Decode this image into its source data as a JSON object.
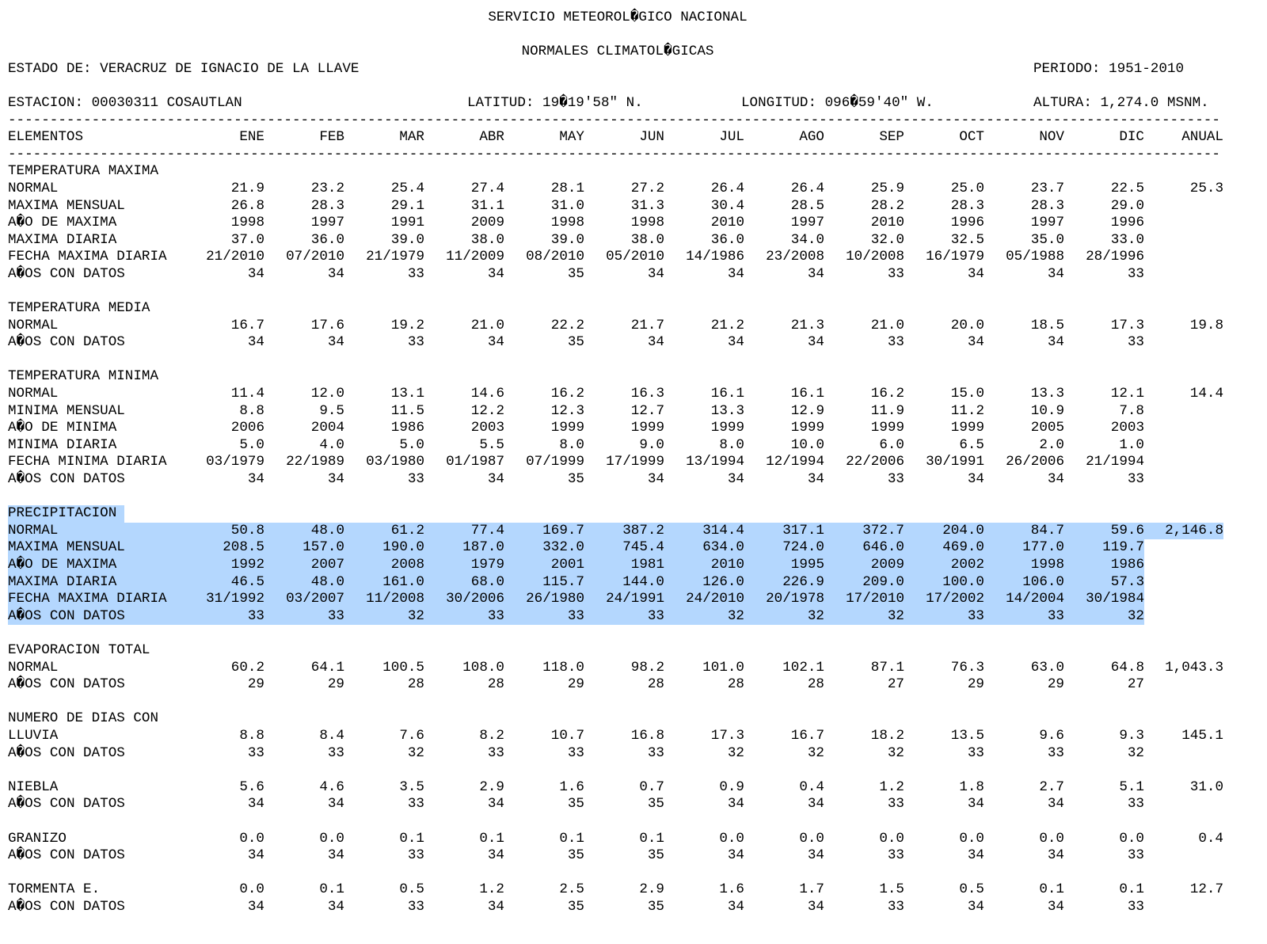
{
  "header": {
    "title": "SERVICIO METEOROL�GICO NACIONAL",
    "subtitle": "NORMALES CLIMATOL�GICAS",
    "estado": "ESTADO DE: VERACRUZ DE IGNACIO DE LA LLAVE",
    "periodo": "PERIODO: 1951-2010",
    "estacion": "ESTACION: 00030311 COSAUTLAN",
    "latitud": "LATITUD: 19�19'58\" N.",
    "longitud": "LONGITUD: 096�59'40\" W.",
    "altura": "ALTURA: 1,274.0 MSNM."
  },
  "dash_line": "----------------------------------------------------------------------------------------------------------------------------------------------------------------------------------------",
  "columns": [
    "ELEMENTOS",
    "ENE",
    "FEB",
    "MAR",
    "ABR",
    "MAY",
    "JUN",
    "JUL",
    "AGO",
    "SEP",
    "OCT",
    "NOV",
    "DIC",
    "ANUAL"
  ],
  "sections": [
    {
      "title": "TEMPERATURA MAXIMA",
      "rows": [
        {
          "label": "NORMAL",
          "values": [
            "21.9",
            "23.2",
            "25.4",
            "27.4",
            "28.1",
            "27.2",
            "26.4",
            "26.4",
            "25.9",
            "25.0",
            "23.7",
            "22.5"
          ],
          "annual": "25.3"
        },
        {
          "label": "MAXIMA MENSUAL",
          "values": [
            "26.8",
            "28.3",
            "29.1",
            "31.1",
            "31.0",
            "31.3",
            "30.4",
            "28.5",
            "28.2",
            "28.3",
            "28.3",
            "29.0"
          ],
          "annual": ""
        },
        {
          "label": "A�O DE MAXIMA",
          "values": [
            "1998",
            "1997",
            "1991",
            "2009",
            "1998",
            "1998",
            "2010",
            "1997",
            "2010",
            "1996",
            "1997",
            "1996"
          ],
          "annual": ""
        },
        {
          "label": "MAXIMA DIARIA",
          "values": [
            "37.0",
            "36.0",
            "39.0",
            "38.0",
            "39.0",
            "38.0",
            "36.0",
            "34.0",
            "32.0",
            "32.5",
            "35.0",
            "33.0"
          ],
          "annual": ""
        },
        {
          "label": "FECHA MAXIMA DIARIA",
          "values": [
            "21/2010",
            "07/2010",
            "21/1979",
            "11/2009",
            "08/2010",
            "05/2010",
            "14/1986",
            "23/2008",
            "10/2008",
            "16/1979",
            "05/1988",
            "28/1996"
          ],
          "annual": ""
        },
        {
          "label": "A�OS CON DATOS",
          "values": [
            "34",
            "34",
            "33",
            "34",
            "35",
            "34",
            "34",
            "34",
            "33",
            "34",
            "34",
            "33"
          ],
          "annual": ""
        }
      ]
    },
    {
      "title": "TEMPERATURA MEDIA",
      "rows": [
        {
          "label": "NORMAL",
          "values": [
            "16.7",
            "17.6",
            "19.2",
            "21.0",
            "22.2",
            "21.7",
            "21.2",
            "21.3",
            "21.0",
            "20.0",
            "18.5",
            "17.3"
          ],
          "annual": "19.8"
        },
        {
          "label": "A�OS CON DATOS",
          "values": [
            "34",
            "34",
            "33",
            "34",
            "35",
            "34",
            "34",
            "34",
            "33",
            "34",
            "34",
            "33"
          ],
          "annual": ""
        }
      ]
    },
    {
      "title": "TEMPERATURA MINIMA",
      "rows": [
        {
          "label": "NORMAL",
          "values": [
            "11.4",
            "12.0",
            "13.1",
            "14.6",
            "16.2",
            "16.3",
            "16.1",
            "16.1",
            "16.2",
            "15.0",
            "13.3",
            "12.1"
          ],
          "annual": "14.4"
        },
        {
          "label": "MINIMA MENSUAL",
          "values": [
            "8.8",
            "9.5",
            "11.5",
            "12.2",
            "12.3",
            "12.7",
            "13.3",
            "12.9",
            "11.9",
            "11.2",
            "10.9",
            "7.8"
          ],
          "annual": ""
        },
        {
          "label": "A�O DE MINIMA",
          "values": [
            "2006",
            "2004",
            "1986",
            "2003",
            "1999",
            "1999",
            "1999",
            "1999",
            "1999",
            "1999",
            "2005",
            "2003"
          ],
          "annual": ""
        },
        {
          "label": "MINIMA DIARIA",
          "values": [
            "5.0",
            "4.0",
            "5.0",
            "5.5",
            "8.0",
            "9.0",
            "8.0",
            "10.0",
            "6.0",
            "6.5",
            "2.0",
            "1.0"
          ],
          "annual": ""
        },
        {
          "label": "FECHA MINIMA DIARIA",
          "values": [
            "03/1979",
            "22/1989",
            "03/1980",
            "01/1987",
            "07/1999",
            "17/1999",
            "13/1994",
            "12/1994",
            "22/2006",
            "30/1991",
            "26/2006",
            "21/1994"
          ],
          "annual": ""
        },
        {
          "label": "A�OS CON DATOS",
          "values": [
            "34",
            "34",
            "33",
            "34",
            "35",
            "34",
            "34",
            "34",
            "33",
            "34",
            "34",
            "33"
          ],
          "annual": ""
        }
      ]
    },
    {
      "title": "PRECIPITACION",
      "highlight": true,
      "rows": [
        {
          "label": "NORMAL",
          "values": [
            "50.8",
            "48.0",
            "61.2",
            "77.4",
            "169.7",
            "387.2",
            "314.4",
            "317.1",
            "372.7",
            "204.0",
            "84.7",
            "59.6"
          ],
          "annual": "2,146.8"
        },
        {
          "label": "MAXIMA MENSUAL",
          "values": [
            "208.5",
            "157.0",
            "190.0",
            "187.0",
            "332.0",
            "745.4",
            "634.0",
            "724.0",
            "646.0",
            "469.0",
            "177.0",
            "119.7"
          ],
          "annual": ""
        },
        {
          "label": "A�O DE MAXIMA",
          "values": [
            "1992",
            "2007",
            "2008",
            "1979",
            "2001",
            "1981",
            "2010",
            "1995",
            "2009",
            "2002",
            "1998",
            "1986"
          ],
          "annual": ""
        },
        {
          "label": "MAXIMA DIARIA",
          "values": [
            "46.5",
            "48.0",
            "161.0",
            "68.0",
            "115.7",
            "144.0",
            "126.0",
            "226.9",
            "209.0",
            "100.0",
            "106.0",
            "57.3"
          ],
          "annual": ""
        },
        {
          "label": "FECHA MAXIMA DIARIA",
          "values": [
            "31/1992",
            "03/2007",
            "11/2008",
            "30/2006",
            "26/1980",
            "24/1991",
            "24/2010",
            "20/1978",
            "17/2010",
            "17/2002",
            "14/2004",
            "30/1984"
          ],
          "annual": ""
        },
        {
          "label": "A�OS CON DATOS",
          "values": [
            "33",
            "33",
            "32",
            "33",
            "33",
            "33",
            "32",
            "32",
            "32",
            "33",
            "33",
            "32"
          ],
          "annual": ""
        }
      ]
    },
    {
      "title": "EVAPORACION TOTAL",
      "rows": [
        {
          "label": "NORMAL",
          "values": [
            "60.2",
            "64.1",
            "100.5",
            "108.0",
            "118.0",
            "98.2",
            "101.0",
            "102.1",
            "87.1",
            "76.3",
            "63.0",
            "64.8"
          ],
          "annual": "1,043.3"
        },
        {
          "label": "A�OS CON DATOS",
          "values": [
            "29",
            "29",
            "28",
            "28",
            "29",
            "28",
            "28",
            "28",
            "27",
            "29",
            "29",
            "27"
          ],
          "annual": ""
        }
      ]
    },
    {
      "title": "NUMERO DE DIAS CON",
      "rows": [
        {
          "label": "LLUVIA",
          "values": [
            "8.8",
            "8.4",
            "7.6",
            "8.2",
            "10.7",
            "16.8",
            "17.3",
            "16.7",
            "18.2",
            "13.5",
            "9.6",
            "9.3"
          ],
          "annual": "145.1"
        },
        {
          "label": "A�OS CON DATOS",
          "values": [
            "33",
            "33",
            "32",
            "33",
            "33",
            "33",
            "32",
            "32",
            "32",
            "33",
            "33",
            "32"
          ],
          "annual": ""
        }
      ]
    },
    {
      "title": "",
      "rows": [
        {
          "label": "NIEBLA",
          "values": [
            "5.6",
            "4.6",
            "3.5",
            "2.9",
            "1.6",
            "0.7",
            "0.9",
            "0.4",
            "1.2",
            "1.8",
            "2.7",
            "5.1"
          ],
          "annual": "31.0"
        },
        {
          "label": "A�OS CON DATOS",
          "values": [
            "34",
            "34",
            "33",
            "34",
            "35",
            "35",
            "34",
            "34",
            "33",
            "34",
            "34",
            "33"
          ],
          "annual": ""
        }
      ]
    },
    {
      "title": "",
      "rows": [
        {
          "label": "GRANIZO",
          "values": [
            "0.0",
            "0.0",
            "0.1",
            "0.1",
            "0.1",
            "0.1",
            "0.0",
            "0.0",
            "0.0",
            "0.0",
            "0.0",
            "0.0"
          ],
          "annual": "0.4"
        },
        {
          "label": "A�OS CON DATOS",
          "values": [
            "34",
            "34",
            "33",
            "34",
            "35",
            "35",
            "34",
            "34",
            "33",
            "34",
            "34",
            "33"
          ],
          "annual": ""
        }
      ]
    },
    {
      "title": "",
      "rows": [
        {
          "label": "TORMENTA E.",
          "values": [
            "0.0",
            "0.1",
            "0.5",
            "1.2",
            "2.5",
            "2.9",
            "1.6",
            "1.7",
            "1.5",
            "0.5",
            "0.1",
            "0.1"
          ],
          "annual": "12.7"
        },
        {
          "label": "A�OS CON DATOS",
          "values": [
            "34",
            "34",
            "33",
            "34",
            "35",
            "35",
            "34",
            "34",
            "33",
            "34",
            "34",
            "33"
          ],
          "annual": ""
        }
      ]
    }
  ]
}
